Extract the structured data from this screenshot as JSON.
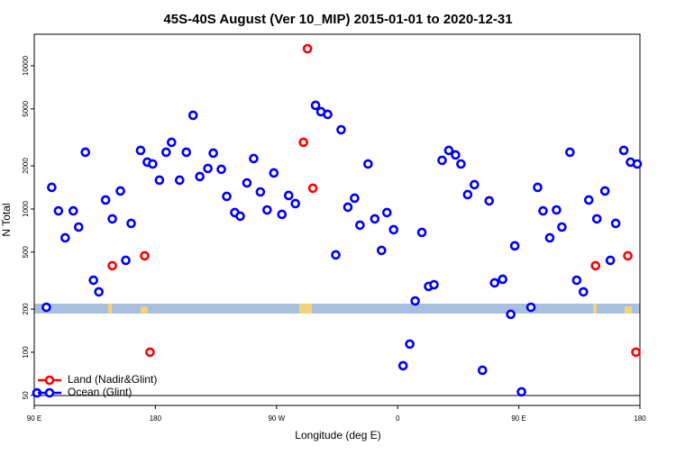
{
  "chart_data": {
    "type": "scatter",
    "title": "45S-40S August (Ver 10_MIP)   2015-01-01 to 2020-12-31",
    "x_label": "Longitude (deg E)",
    "y_label": "N Total",
    "xlim": [
      90,
      540
    ],
    "xticks": [
      {
        "value": 90,
        "label": "90 E"
      },
      180,
      {
        "value": 270,
        "label": "90 W"
      },
      {
        "value": 360,
        "label": "0"
      },
      {
        "value": 450,
        "label": "90 E"
      },
      {
        "value": 540,
        "label": "180"
      }
    ],
    "ylim": [
      42.5,
      16600
    ],
    "log_y": true,
    "yticks": [
      50,
      100,
      200,
      500,
      1000,
      2000,
      5000,
      10000
    ],
    "legend": "bottom-left",
    "series": [
      {
        "name": "Land (Nadir&Glint)",
        "color": "#ff0000",
        "x": [
          148,
          172,
          176,
          290,
          293,
          297,
          507,
          531,
          537
        ],
        "values": [
          402,
          471,
          100,
          2920,
          13160,
          1396,
          402,
          471,
          100
        ]
      },
      {
        "name": "Ocean (Glint)",
        "color": "#0000ff",
        "x": [
          92,
          99,
          103,
          108,
          113,
          119,
          123,
          128,
          134,
          138,
          143,
          148,
          154,
          158,
          162,
          169,
          174,
          178,
          183,
          188,
          192,
          198,
          203,
          208,
          213,
          219,
          223,
          229,
          233,
          239,
          243,
          248,
          253,
          258,
          263,
          268,
          274,
          279,
          284,
          299,
          303,
          308,
          314,
          318,
          323,
          328,
          332,
          338,
          343,
          348,
          352,
          357,
          364,
          369,
          373,
          378,
          383,
          387,
          393,
          398,
          403,
          407,
          412,
          417,
          423,
          428,
          432,
          438,
          444,
          447,
          452,
          459,
          464,
          468,
          473,
          478,
          482,
          488,
          493,
          498,
          502,
          508,
          514,
          518,
          522,
          528,
          533,
          538
        ],
        "values": [
          52,
          206,
          1416,
          970,
          629,
          970,
          748,
          2490,
          318,
          264,
          1156,
          853,
          1336,
          438,
          793,
          2564,
          2124,
          2062,
          1589,
          2490,
          2920,
          1589,
          2490,
          4510,
          1684,
          1918,
          2455,
          1892,
          1225,
          944,
          891,
          1521,
          2250,
          1316,
          985,
          1785,
          917,
          1243,
          1091,
          5290,
          4780,
          4575,
          478,
          3575,
          1030,
          1190,
          771,
          2062,
          853,
          514,
          944,
          717,
          80.5,
          114,
          228,
          686,
          288,
          296,
          2187,
          2564,
          2384,
          2062,
          1261,
          1479,
          74.8,
          1140,
          305,
          323,
          184,
          553,
          52.9,
          206,
          1416,
          970,
          629,
          985,
          748,
          2490,
          318,
          264,
          1156,
          853,
          1336,
          438,
          793,
          2564,
          2124,
          2062
        ]
      }
    ]
  }
}
